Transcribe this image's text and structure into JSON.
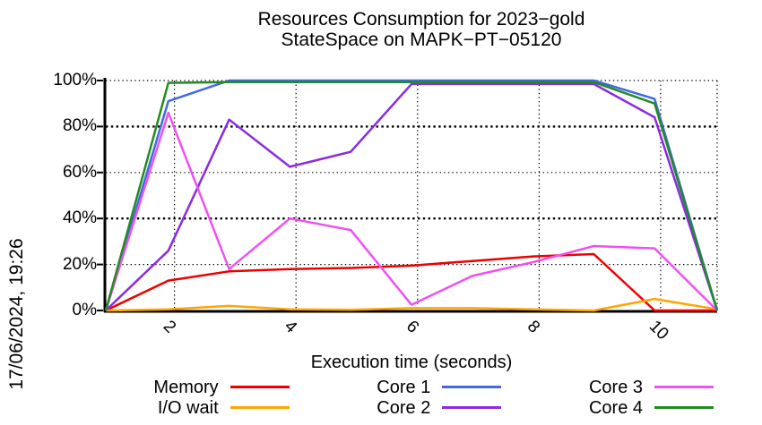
{
  "chart_data": {
    "type": "line",
    "title": "Resources Consumption for 2023−gold",
    "subtitle": "StateSpace on MAPK−PT−05120",
    "xlabel": "Execution time (seconds)",
    "ylabel": "",
    "timestamp": "17/06/2024, 19:26",
    "xlim": [
      0.87,
      10.93
    ],
    "ylim": [
      0,
      100
    ],
    "x_ticks": [
      2,
      4,
      6,
      8,
      10
    ],
    "x_tick_labels": [
      "2",
      "4",
      "6",
      "8",
      "10"
    ],
    "y_ticks": [
      0,
      20,
      40,
      60,
      80,
      100
    ],
    "y_tick_labels": [
      "0%",
      "20%",
      "40%",
      "60%",
      "80%",
      "100%"
    ],
    "grid": true,
    "legend_position": "bottom",
    "x": [
      0.87,
      1.9,
      2.9,
      3.9,
      4.9,
      5.9,
      6.9,
      7.9,
      8.9,
      9.9,
      10.93
    ],
    "series": [
      {
        "name": "Memory",
        "color": "#ee0000",
        "values": [
          0,
          13,
          17,
          18,
          18.5,
          19.5,
          21.5,
          23.5,
          24.5,
          0,
          0
        ]
      },
      {
        "name": "I/O wait",
        "color": "#ffa500",
        "values": [
          0,
          0.5,
          2,
          0.5,
          0.3,
          1,
          1,
          0.5,
          0,
          5,
          0.5
        ]
      },
      {
        "name": "Core 1",
        "color": "#4169e1",
        "values": [
          0,
          91,
          100,
          100,
          100,
          100,
          100,
          100,
          100,
          92,
          0
        ]
      },
      {
        "name": "Core 2",
        "color": "#8a2be2",
        "values": [
          0,
          26,
          83,
          62.5,
          69,
          98.5,
          98.5,
          98.5,
          98.5,
          84,
          0
        ]
      },
      {
        "name": "Core 3",
        "color": "#f050f0",
        "values": [
          0,
          86,
          18,
          40,
          35,
          2.5,
          15,
          21,
          28,
          27,
          0
        ]
      },
      {
        "name": "Core 4",
        "color": "#228b22",
        "values": [
          0,
          99,
          99.3,
          99.3,
          99.3,
          99.3,
          99.3,
          99.3,
          99.3,
          90,
          0
        ]
      }
    ]
  }
}
